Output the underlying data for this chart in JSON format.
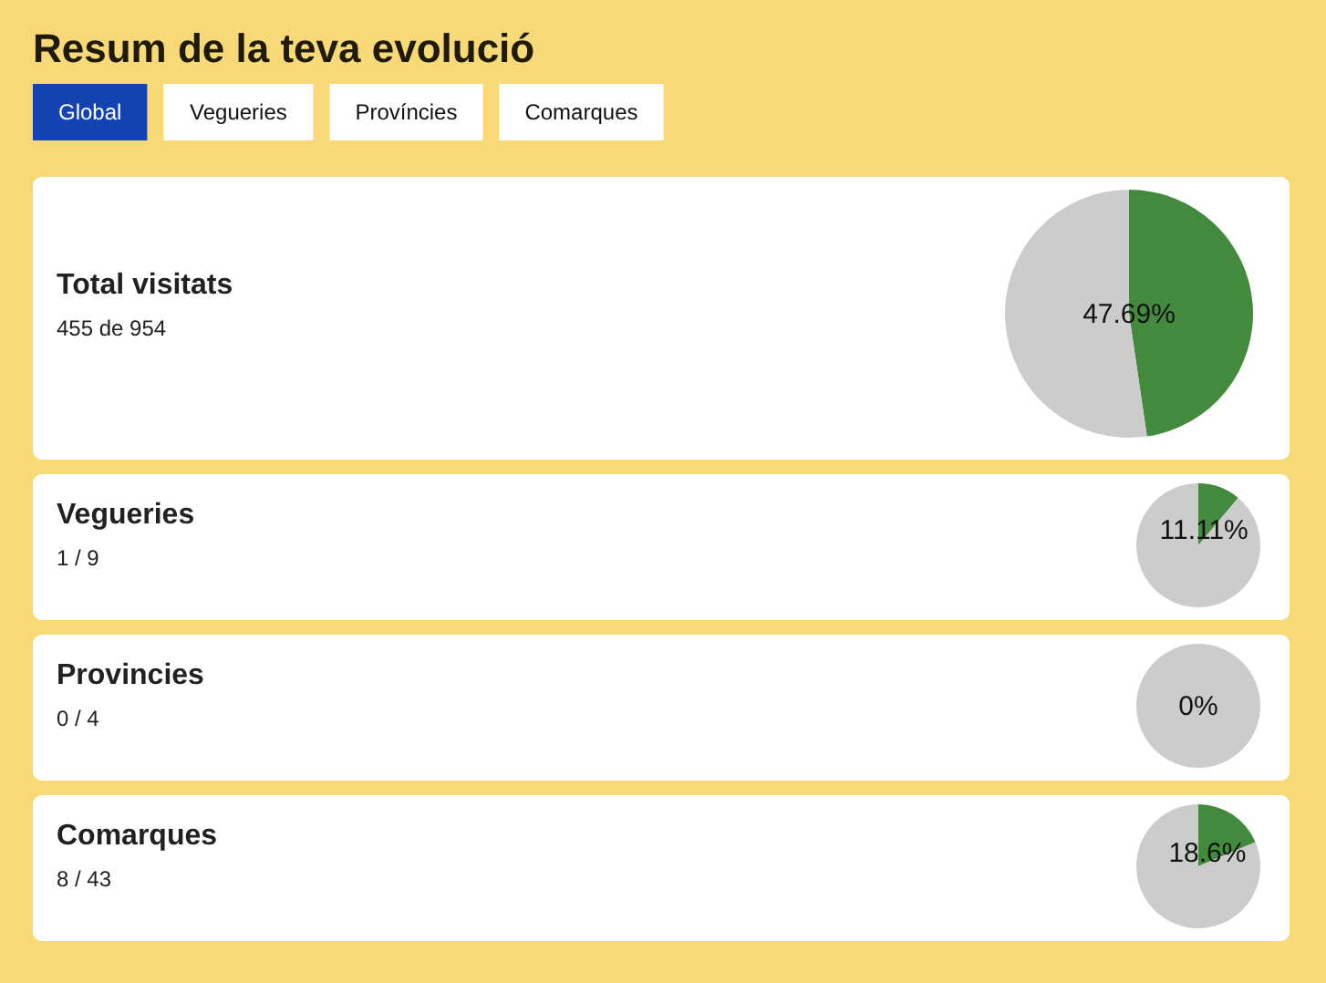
{
  "chart_data": [
    {
      "type": "other",
      "title": "Resum de la teva evolució",
      "annotations": [
        "Global",
        "Vegueries",
        "Províncies",
        "Comarques"
      ]
    },
    {
      "type": "other",
      "title": "Total visitats",
      "subtitle": "455 de 954"
    },
    {
      "type": "pie",
      "categories": [
        null,
        null
      ],
      "values": [
        47.69,
        52.31
      ],
      "colors": [
        "#438a3f",
        "#cccccc"
      ],
      "value_labels": [
        "47.69%",
        null
      ]
    },
    {
      "type": "other",
      "title": "Vegueries",
      "subtitle": "1 / 9"
    },
    {
      "type": "pie",
      "categories": [
        null,
        null
      ],
      "values": [
        11.11,
        88.89
      ],
      "colors": [
        "#438a3f",
        "#cccccc"
      ],
      "value_labels": [
        "11.11%",
        null
      ]
    },
    {
      "type": "other",
      "title": "Provincies",
      "subtitle": "0 / 4"
    },
    {
      "type": "pie",
      "categories": [
        null,
        null
      ],
      "values": [
        0,
        100
      ],
      "colors": [
        "#438a3f",
        "#cccccc"
      ],
      "value_labels": [
        "0%",
        null
      ]
    },
    {
      "type": "other",
      "title": "Comarques",
      "subtitle": "8 / 43"
    },
    {
      "type": "pie",
      "categories": [
        null,
        null
      ],
      "values": [
        18.6,
        81.4
      ],
      "colors": [
        "#438a3f",
        "#cccccc"
      ],
      "value_labels": [
        "18.6%",
        null
      ]
    }
  ]
}
